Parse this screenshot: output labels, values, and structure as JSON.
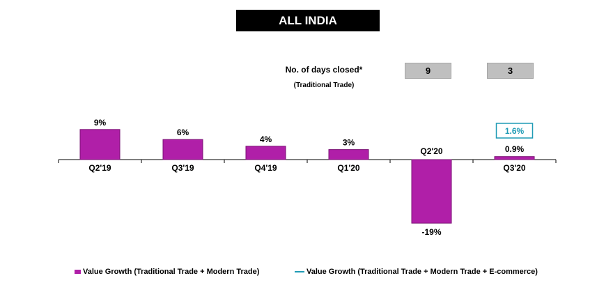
{
  "title": "ALL INDIA",
  "days_closed": {
    "label": "No. of days closed*",
    "sublabel": "(Traditional Trade)",
    "values": [
      {
        "quarter": "Q2'20",
        "value": "9"
      },
      {
        "quarter": "Q3'20",
        "value": "3"
      }
    ]
  },
  "colors": {
    "bar": "#b01fa8",
    "bar_border": "#7a1275",
    "ecommerce": "#1f9bb5"
  },
  "chart_data": {
    "type": "bar",
    "title": "ALL INDIA",
    "categories": [
      "Q2'19",
      "Q3'19",
      "Q4'19",
      "Q1'20",
      "Q2'20",
      "Q3'20"
    ],
    "series": [
      {
        "name": "Value Growth (Traditional Trade + Modern Trade)",
        "values": [
          9,
          6,
          4,
          3,
          -19,
          0.9
        ],
        "labels": [
          "9%",
          "6%",
          "4%",
          "3%",
          "-19%",
          "0.9%"
        ]
      },
      {
        "name": "Value Growth (Traditional Trade + Modern Trade + E-commerce)",
        "values": [
          null,
          null,
          null,
          null,
          null,
          1.6
        ],
        "labels": [
          "",
          "",
          "",
          "",
          "",
          "1.6%"
        ]
      }
    ],
    "xlabel": "",
    "ylabel": "",
    "ylim": [
      -19,
      9
    ],
    "grid": false,
    "legend_position": "bottom"
  }
}
